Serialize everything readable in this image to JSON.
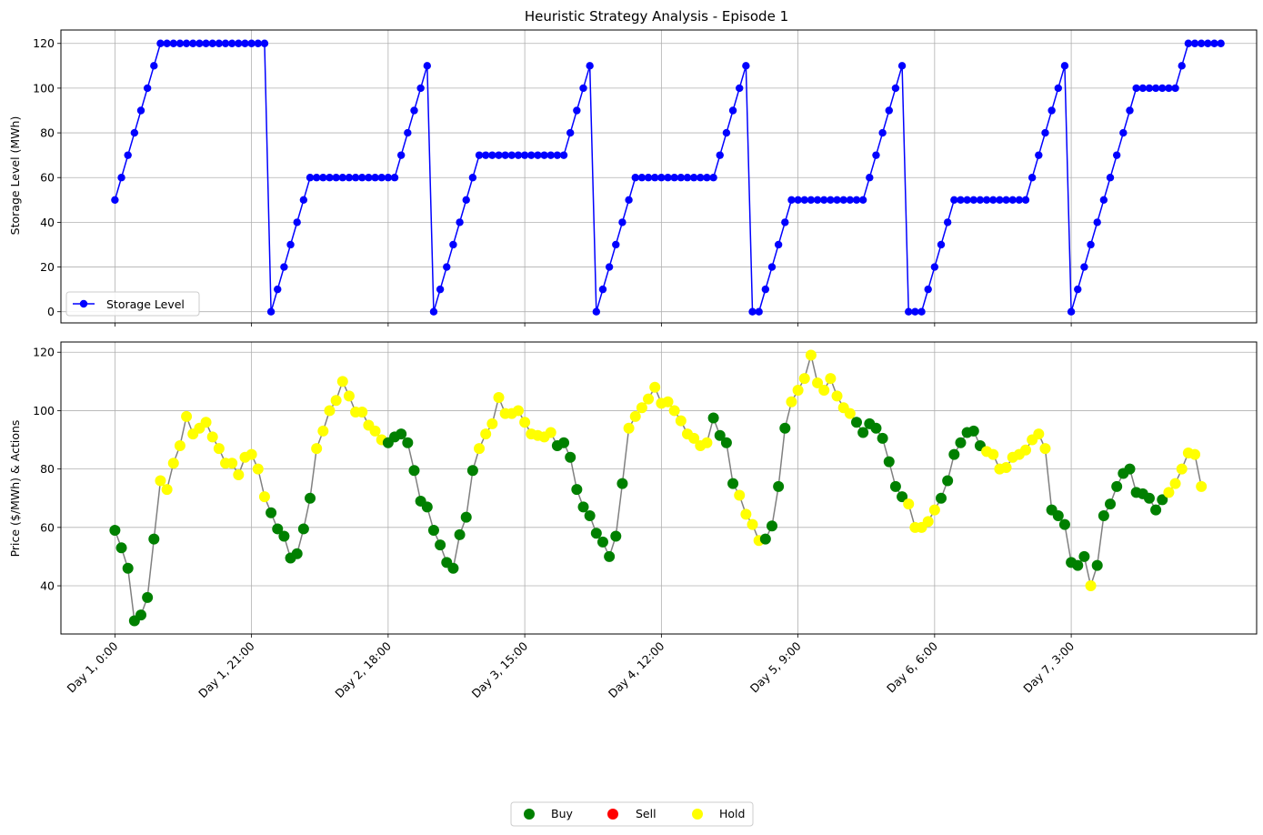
{
  "chart_data": [
    {
      "type": "line",
      "title": "Heuristic Strategy Analysis - Episode 1",
      "xlabel": "",
      "ylabel": "Storage Level (MWh)",
      "ylim": [
        -5,
        126
      ],
      "yticks": [
        0,
        20,
        40,
        60,
        80,
        100,
        120
      ],
      "grid": true,
      "legend_position": "lower-left",
      "x_range": [
        -8.3,
        175.5
      ],
      "x_tick_positions": [
        0,
        21,
        42,
        63,
        84,
        105,
        126,
        147
      ],
      "series": [
        {
          "name": "Storage Level",
          "color": "#0000ff",
          "values": [
            50,
            60,
            70,
            80,
            90,
            100,
            110,
            120,
            120,
            120,
            120,
            120,
            120,
            120,
            120,
            120,
            120,
            120,
            120,
            120,
            120,
            120,
            120,
            120,
            0,
            10,
            20,
            30,
            40,
            50,
            60,
            60,
            60,
            60,
            60,
            60,
            60,
            60,
            60,
            60,
            60,
            60,
            60,
            60,
            70,
            80,
            90,
            100,
            110,
            0,
            10,
            20,
            30,
            40,
            50,
            60,
            70,
            70,
            70,
            70,
            70,
            70,
            70,
            70,
            70,
            70,
            70,
            70,
            70,
            70,
            80,
            90,
            100,
            110,
            0,
            10,
            20,
            30,
            40,
            50,
            60,
            60,
            60,
            60,
            60,
            60,
            60,
            60,
            60,
            60,
            60,
            60,
            60,
            70,
            80,
            90,
            100,
            110,
            0,
            0,
            10,
            20,
            30,
            40,
            50,
            50,
            50,
            50,
            50,
            50,
            50,
            50,
            50,
            50,
            50,
            50,
            60,
            70,
            80,
            90,
            100,
            110,
            0,
            0,
            0,
            10,
            20,
            30,
            40,
            50,
            50,
            50,
            50,
            50,
            50,
            50,
            50,
            50,
            50,
            50,
            50,
            60,
            70,
            80,
            90,
            100,
            110,
            0,
            10,
            20,
            30,
            40,
            50,
            60,
            70,
            80,
            90,
            100,
            100,
            100,
            100,
            100,
            100,
            100,
            110,
            120,
            120,
            120,
            120,
            120,
            120
          ]
        }
      ]
    },
    {
      "type": "scatter",
      "xlabel": "",
      "ylabel": "Price ($/MWh) & Actions",
      "ylim": [
        23.5,
        123.5
      ],
      "yticks": [
        40,
        60,
        80,
        100,
        120
      ],
      "grid": true,
      "line_color": "#808080",
      "x_range": [
        -8.3,
        175.5
      ],
      "x_tick_positions": [
        0,
        21,
        42,
        63,
        84,
        105,
        126,
        147
      ],
      "x_tick_labels": [
        "Day 1, 0:00",
        "Day 1, 21:00",
        "Day 2, 18:00",
        "Day 3, 15:00",
        "Day 4, 12:00",
        "Day 5, 9:00",
        "Day 6, 6:00",
        "Day 7, 3:00"
      ],
      "action_colors": {
        "B": "#008000",
        "S": "#ff0000",
        "H": "#ffff00"
      },
      "prices": [
        59,
        53,
        46,
        28,
        30,
        36,
        56,
        76,
        73,
        82,
        88,
        98,
        92,
        94,
        96,
        91,
        87,
        82,
        82,
        78,
        84,
        85,
        80,
        70.5,
        65,
        59.5,
        57,
        49.5,
        51,
        59.5,
        70,
        87,
        93,
        100,
        103.5,
        110,
        105,
        99.5,
        99.5,
        95,
        93,
        90,
        89,
        91,
        92,
        89,
        79.5,
        69,
        67,
        59,
        54,
        48,
        46,
        57.5,
        63.5,
        79.5,
        87,
        92,
        95.5,
        104.5,
        99,
        99,
        100,
        96,
        92,
        91.5,
        91,
        92.5,
        88,
        89,
        84,
        73,
        67,
        64,
        58,
        55,
        50,
        57,
        75,
        94,
        98,
        101,
        104,
        108,
        102.5,
        103,
        100,
        96.5,
        92,
        90.5,
        88,
        89,
        97.5,
        91.5,
        89,
        75,
        71,
        64.5,
        61,
        55.5,
        56,
        60.5,
        74,
        94,
        103,
        107,
        111,
        119,
        109.5,
        107,
        111,
        105,
        101,
        99,
        96,
        92.5,
        95.5,
        94,
        90.5,
        82.5,
        74,
        70.5,
        68,
        60,
        60,
        62,
        66,
        70,
        76,
        85,
        89,
        92.5,
        93,
        88,
        86,
        85,
        80,
        80.5,
        84,
        85,
        86.5,
        90,
        92,
        87,
        66,
        64,
        61,
        48,
        47,
        50,
        40,
        47,
        64,
        68,
        74,
        78.5,
        80,
        72,
        71.5,
        70,
        66,
        69.5,
        72,
        75,
        80,
        85.5,
        85,
        74
      ],
      "actions": "BBBBBBBHHHHHHHHHHHHHHHHHBBBBBBBHHHHHHHHHHHBBBBBBBBBBBBBBHHHHHHHHHHHHBBBBBBBBBBBHHHHHHHHHHHHHBBBBHHHHBBBBHHHHHHHHHHBBBBBBBBHHHHHBBBBBBBHHHHHHHHHHBBBBBBHBBBBBBBBBBBHHHHHHHHBHHHHHH",
      "legend": [
        {
          "label": "Buy",
          "color": "#008000"
        },
        {
          "label": "Sell",
          "color": "#ff0000"
        },
        {
          "label": "Hold",
          "color": "#ffff00"
        }
      ]
    }
  ]
}
